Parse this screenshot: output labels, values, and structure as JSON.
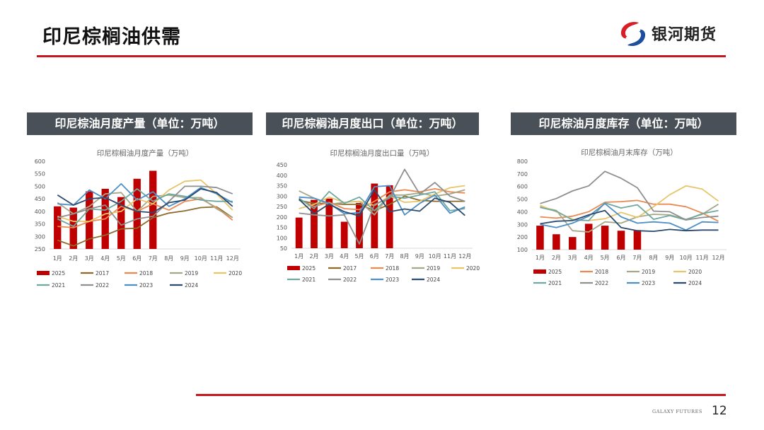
{
  "header": {
    "title": "印尼棕榈油供需",
    "brand": "银河期货"
  },
  "footer": {
    "brand_en": "GALAXY FUTURES",
    "page_number": "12"
  },
  "panels": [
    {
      "heading": "印尼棕油月度产量（单位：万吨）"
    },
    {
      "heading": "印尼棕榈油月度出口（单位：万吨）"
    },
    {
      "heading": "印尼棕油月度库存（单位：万吨）"
    }
  ],
  "colors": {
    "2025": "#c00000",
    "2017": "#8c6a2a",
    "2018": "#e98a52",
    "2019": "#a6a889",
    "2020": "#e8c46a",
    "2021": "#6fa8a0",
    "2022": "#8f8f8f",
    "2023": "#4e8fc6",
    "2024": "#2c4b6e"
  },
  "chart_data": [
    {
      "type": "bar+line",
      "title": "印尼棕榈油月度产量（万吨）",
      "categories": [
        "1月",
        "2月",
        "3月",
        "4月",
        "5月",
        "6月",
        "7月",
        "8月",
        "9月",
        "10月",
        "11月",
        "12月"
      ],
      "ylim": [
        250,
        600
      ],
      "yticks": [
        250,
        300,
        350,
        400,
        450,
        500,
        550,
        600
      ],
      "grid": false,
      "legend": "bottom",
      "bar_series": {
        "name": "2025",
        "values": [
          420,
          415,
          480,
          490,
          457,
          530,
          562
        ]
      },
      "series": [
        {
          "name": "2017",
          "values": [
            285,
            262,
            290,
            305,
            330,
            333,
            375,
            393,
            402,
            415,
            418,
            375
          ]
        },
        {
          "name": "2018",
          "values": [
            340,
            335,
            360,
            370,
            420,
            400,
            430,
            405,
            440,
            450,
            415,
            365
          ]
        },
        {
          "name": "2019",
          "values": [
            435,
            390,
            420,
            470,
            475,
            400,
            460,
            465,
            455,
            455,
            410,
            375
          ]
        },
        {
          "name": "2020",
          "values": [
            380,
            360,
            360,
            390,
            400,
            450,
            430,
            485,
            520,
            525,
            470,
            405
          ]
        },
        {
          "name": "2021",
          "values": [
            370,
            340,
            410,
            405,
            440,
            490,
            440,
            470,
            460,
            445,
            440,
            440
          ]
        },
        {
          "name": "2022",
          "values": [
            375,
            390,
            410,
            425,
            345,
            370,
            380,
            440,
            500,
            500,
            495,
            470
          ]
        },
        {
          "name": "2023",
          "values": [
            430,
            425,
            485,
            450,
            510,
            445,
            478,
            420,
            450,
            495,
            470,
            435
          ]
        },
        {
          "name": "2024",
          "values": [
            465,
            425,
            450,
            455,
            425,
            400,
            395,
            435,
            445,
            490,
            475,
            420
          ]
        }
      ]
    },
    {
      "type": "bar+line",
      "title": "印尼棕榈油月度出口量（万吨）",
      "categories": [
        "1月",
        "2月",
        "3月",
        "4月",
        "5月",
        "6月",
        "7月",
        "8月",
        "9月",
        "10月",
        "11月",
        "12月"
      ],
      "ylim": [
        50,
        450
      ],
      "yticks": [
        50,
        100,
        150,
        200,
        250,
        300,
        350,
        400,
        450
      ],
      "grid": false,
      "legend": "bottom",
      "bar_series": {
        "name": "2025",
        "values": [
          197,
          282,
          288,
          177,
          267,
          360,
          352
        ]
      },
      "series": [
        {
          "name": "2017",
          "values": [
            280,
            265,
            265,
            260,
            260,
            230,
            260,
            300,
            280,
            275,
            275,
            275
          ]
        },
        {
          "name": "2018",
          "values": [
            285,
            250,
            270,
            240,
            235,
            275,
            320,
            330,
            320,
            335,
            320,
            315
          ]
        },
        {
          "name": "2019",
          "values": [
            325,
            290,
            260,
            270,
            275,
            210,
            305,
            305,
            315,
            300,
            310,
            330
          ]
        },
        {
          "name": "2020",
          "values": [
            240,
            260,
            295,
            270,
            275,
            255,
            300,
            270,
            275,
            310,
            340,
            350
          ]
        },
        {
          "name": "2021",
          "values": [
            290,
            240,
            322,
            265,
            295,
            230,
            300,
            290,
            305,
            320,
            230,
            240
          ]
        },
        {
          "name": "2022",
          "values": [
            218,
            210,
            205,
            210,
            70,
            260,
            290,
            428,
            310,
            365,
            300,
            275
          ]
        },
        {
          "name": "2023",
          "values": [
            295,
            290,
            265,
            215,
            220,
            345,
            350,
            210,
            265,
            305,
            218,
            248
          ]
        },
        {
          "name": "2024",
          "values": [
            285,
            215,
            262,
            225,
            205,
            330,
            225,
            238,
            228,
            290,
            270,
            207
          ]
        }
      ]
    },
    {
      "type": "bar+line",
      "title": "印尼棕榈油月末库存（万吨）",
      "categories": [
        "1月",
        "2月",
        "3月",
        "4月",
        "5月",
        "6月",
        "7月",
        "8月",
        "9月",
        "10月",
        "11月",
        "12月"
      ],
      "ylim": [
        100,
        800
      ],
      "yticks": [
        100,
        200,
        300,
        400,
        500,
        600,
        700,
        800
      ],
      "grid": false,
      "legend": "bottom",
      "bar_series": {
        "name": "2025",
        "values": [
          290,
          222,
          200,
          305,
          290,
          250,
          255
        ]
      },
      "series": [
        {
          "name": "2018",
          "values": [
            360,
            350,
            365,
            400,
            475,
            480,
            490,
            460,
            460,
            440,
            390,
            325
          ]
        },
        {
          "name": "2019",
          "values": [
            440,
            410,
            250,
            240,
            320,
            310,
            360,
            380,
            375,
            340,
            380,
            460
          ]
        },
        {
          "name": "2020",
          "values": [
            450,
            400,
            340,
            330,
            345,
            395,
            355,
            440,
            535,
            605,
            580,
            485
          ]
        },
        {
          "name": "2021",
          "values": [
            435,
            405,
            335,
            330,
            470,
            430,
            455,
            340,
            370,
            335,
            385,
            410
          ]
        },
        {
          "name": "2022",
          "values": [
            465,
            505,
            565,
            605,
            720,
            665,
            590,
            405,
            400,
            335,
            355,
            365
          ]
        },
        {
          "name": "2023",
          "values": [
            300,
            275,
            310,
            365,
            465,
            360,
            310,
            320,
            310,
            255,
            320,
            315
          ]
        },
        {
          "name": "2024",
          "values": [
            305,
            325,
            330,
            375,
            410,
            275,
            250,
            245,
            260,
            250,
            255,
            255
          ]
        }
      ]
    }
  ]
}
